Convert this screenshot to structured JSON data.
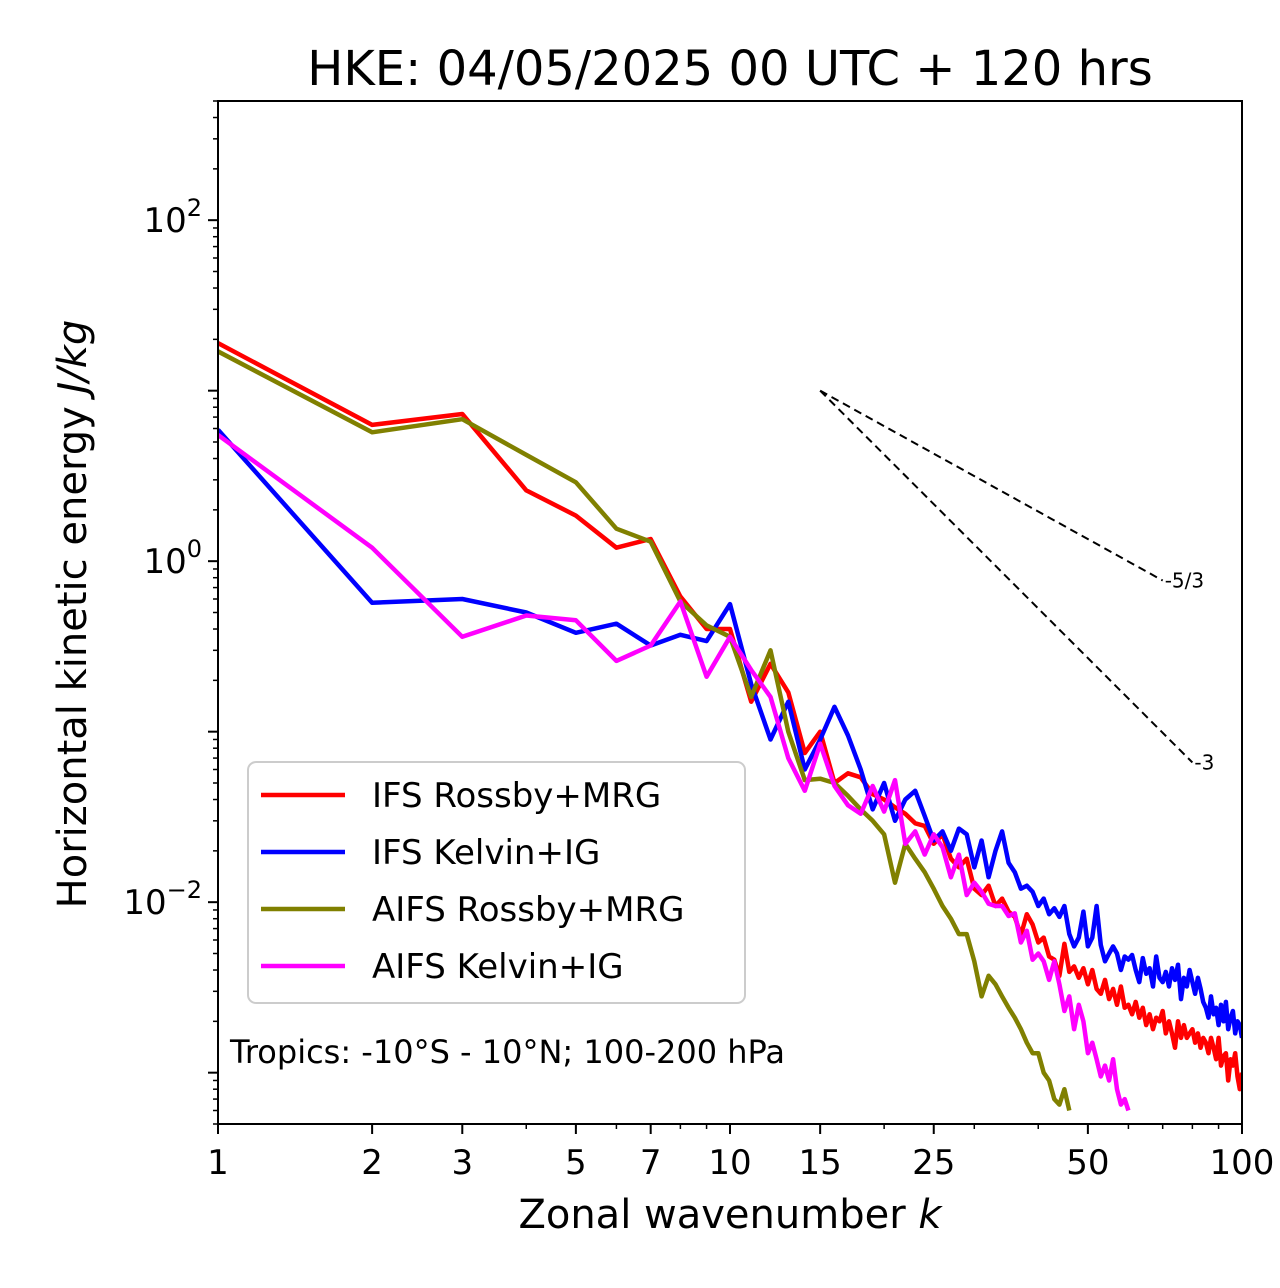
{
  "chart_data": {
    "type": "line",
    "title": "HKE: 04/05/2025 00 UTC + 120 hrs",
    "xlabel": "Zonal wavenumber",
    "xlabel_italic": "k",
    "ylabel": "Horizontal kinetic energy",
    "ylabel_italic": "J/kg",
    "xscale": "log",
    "yscale": "log",
    "xlim": [
      1,
      100
    ],
    "ylim": [
      0.0005,
      500
    ],
    "x_ticks": [
      1,
      2,
      3,
      5,
      7,
      10,
      15,
      25,
      50,
      100
    ],
    "x_tick_labels": [
      "1",
      "2",
      "3",
      "5",
      "7",
      "10",
      "15",
      "25",
      "50",
      "100"
    ],
    "y_ticks": [
      0.01,
      1,
      100
    ],
    "y_tick_bases": [
      "10",
      "10",
      "10"
    ],
    "y_tick_exps": [
      "−2",
      "0",
      "2"
    ],
    "grid": false,
    "legend_position": "lower-left",
    "annotation": "Tropics: -10°S - 10°N; 100-200 hPa",
    "reference_slopes": [
      {
        "label": "-5/3",
        "x": [
          15,
          70
        ],
        "y": [
          10,
          0.77
        ]
      },
      {
        "label": "-3",
        "x": [
          15,
          80
        ],
        "y": [
          10,
          0.066
        ]
      }
    ],
    "series": [
      {
        "name": "IFS Rossby+MRG",
        "color": "#ff0000",
        "x": [
          1,
          2,
          3,
          4,
          5,
          6,
          7,
          8,
          9,
          10,
          11,
          12,
          13,
          14,
          15,
          16,
          17,
          18,
          19,
          20,
          21,
          22,
          23,
          24,
          25,
          26,
          27,
          28,
          29,
          30,
          31,
          32,
          33,
          34,
          35,
          36,
          37,
          38,
          39,
          40,
          41,
          42,
          43,
          44,
          45,
          46,
          47,
          48,
          49,
          50,
          51,
          52,
          53,
          54,
          55,
          56,
          57,
          58,
          59,
          60,
          61,
          62,
          63,
          64,
          65,
          66,
          67,
          68,
          69,
          70,
          71,
          72,
          73,
          74,
          75,
          76,
          77,
          78,
          79,
          80,
          81,
          82,
          83,
          84,
          85,
          86,
          87,
          88,
          89,
          90,
          91,
          92,
          93,
          94,
          95,
          96,
          97,
          98,
          99,
          100
        ],
        "y": [
          19,
          6.3,
          7.3,
          2.6,
          1.85,
          1.2,
          1.35,
          0.62,
          0.4,
          0.4,
          0.15,
          0.25,
          0.17,
          0.075,
          0.1,
          0.05,
          0.057,
          0.054,
          0.043,
          0.04,
          0.036,
          0.033,
          0.029,
          0.028,
          0.022,
          0.025,
          0.018,
          0.016,
          0.018,
          0.012,
          0.011,
          0.0125,
          0.0095,
          0.0105,
          0.0088,
          0.0082,
          0.0064,
          0.0085,
          0.0074,
          0.0058,
          0.0062,
          0.0048,
          0.0046,
          0.0037,
          0.0057,
          0.0039,
          0.0042,
          0.0036,
          0.0041,
          0.0033,
          0.004,
          0.0031,
          0.0029,
          0.0035,
          0.0027,
          0.0031,
          0.0025,
          0.0032,
          0.0024,
          0.0025,
          0.0022,
          0.0026,
          0.0021,
          0.0024,
          0.0019,
          0.0022,
          0.0018,
          0.0021,
          0.002,
          0.0023,
          0.0017,
          0.002,
          0.0017,
          0.0014,
          0.002,
          0.0016,
          0.0019,
          0.0016,
          0.0017,
          0.0018,
          0.0015,
          0.0017,
          0.0014,
          0.0016,
          0.0015,
          0.0013,
          0.0016,
          0.0014,
          0.0012,
          0.0016,
          0.0011,
          0.00125,
          0.0013,
          0.0009,
          0.0012,
          0.0011,
          0.0013,
          0.00095,
          0.0008,
          0.001
        ]
      },
      {
        "name": "IFS Kelvin+IG",
        "color": "#0000ff",
        "x": [
          1,
          2,
          3,
          4,
          5,
          6,
          7,
          8,
          9,
          10,
          11,
          12,
          13,
          14,
          15,
          16,
          17,
          18,
          19,
          20,
          21,
          22,
          23,
          24,
          25,
          26,
          27,
          28,
          29,
          30,
          31,
          32,
          33,
          34,
          35,
          36,
          37,
          38,
          39,
          40,
          41,
          42,
          43,
          44,
          45,
          46,
          47,
          48,
          49,
          50,
          51,
          52,
          53,
          54,
          55,
          56,
          57,
          58,
          59,
          60,
          61,
          62,
          63,
          64,
          65,
          66,
          67,
          68,
          69,
          70,
          71,
          72,
          73,
          74,
          75,
          76,
          77,
          78,
          79,
          80,
          81,
          82,
          83,
          84,
          85,
          86,
          87,
          88,
          89,
          90,
          91,
          92,
          93,
          94,
          95,
          96,
          97,
          98,
          99,
          100
        ],
        "y": [
          5.9,
          0.57,
          0.6,
          0.5,
          0.38,
          0.43,
          0.32,
          0.37,
          0.34,
          0.56,
          0.19,
          0.09,
          0.15,
          0.06,
          0.09,
          0.14,
          0.095,
          0.06,
          0.035,
          0.05,
          0.03,
          0.04,
          0.045,
          0.032,
          0.023,
          0.026,
          0.02,
          0.027,
          0.025,
          0.016,
          0.023,
          0.014,
          0.02,
          0.026,
          0.017,
          0.015,
          0.012,
          0.0125,
          0.0115,
          0.0095,
          0.0105,
          0.0085,
          0.0092,
          0.0082,
          0.0095,
          0.0065,
          0.0055,
          0.0062,
          0.0088,
          0.0055,
          0.0062,
          0.0095,
          0.0056,
          0.0045,
          0.005,
          0.0055,
          0.005,
          0.004,
          0.0048,
          0.0046,
          0.0049,
          0.004,
          0.0034,
          0.0047,
          0.0038,
          0.0041,
          0.0032,
          0.0048,
          0.0036,
          0.0034,
          0.0039,
          0.0032,
          0.0041,
          0.0035,
          0.0043,
          0.0027,
          0.0036,
          0.0032,
          0.004,
          0.0034,
          0.0029,
          0.0036,
          0.0031,
          0.0026,
          0.0024,
          0.0021,
          0.0028,
          0.0022,
          0.0024,
          0.0019,
          0.0025,
          0.002,
          0.0026,
          0.0018,
          0.0021,
          0.0023,
          0.0017,
          0.002,
          0.0019,
          0.0016
        ]
      },
      {
        "name": "AIFS Rossby+MRG",
        "color": "#808000",
        "x": [
          1,
          2,
          3,
          4,
          5,
          6,
          7,
          8,
          9,
          10,
          11,
          12,
          13,
          14,
          15,
          16,
          17,
          18,
          19,
          20,
          21,
          22,
          23,
          24,
          25,
          26,
          27,
          28,
          29,
          30,
          31,
          32,
          33,
          34,
          35,
          36,
          37,
          38,
          39,
          40,
          41,
          42,
          43,
          44,
          45,
          46
        ],
        "y": [
          17,
          5.7,
          6.8,
          4.2,
          2.9,
          1.55,
          1.3,
          0.58,
          0.42,
          0.36,
          0.16,
          0.3,
          0.1,
          0.052,
          0.053,
          0.05,
          0.042,
          0.035,
          0.03,
          0.025,
          0.013,
          0.022,
          0.018,
          0.015,
          0.012,
          0.0095,
          0.008,
          0.0065,
          0.0065,
          0.0045,
          0.0028,
          0.0037,
          0.0033,
          0.0028,
          0.0024,
          0.0021,
          0.0018,
          0.0015,
          0.0013,
          0.0013,
          0.001,
          0.0009,
          0.0007,
          0.00065,
          0.0008,
          0.0006
        ]
      },
      {
        "name": "AIFS Kelvin+IG",
        "color": "#ff00ff",
        "x": [
          1,
          2,
          3,
          4,
          5,
          6,
          7,
          8,
          9,
          10,
          11,
          12,
          13,
          14,
          15,
          16,
          17,
          18,
          19,
          20,
          21,
          22,
          23,
          24,
          25,
          26,
          27,
          28,
          29,
          30,
          31,
          32,
          33,
          34,
          35,
          36,
          37,
          38,
          39,
          40,
          41,
          42,
          43,
          44,
          45,
          46,
          47,
          48,
          49,
          50,
          51,
          52,
          53,
          54,
          55,
          56,
          57,
          58,
          59,
          60
        ],
        "y": [
          5.5,
          1.2,
          0.36,
          0.48,
          0.45,
          0.26,
          0.32,
          0.58,
          0.21,
          0.36,
          0.23,
          0.16,
          0.07,
          0.045,
          0.085,
          0.048,
          0.037,
          0.033,
          0.048,
          0.034,
          0.052,
          0.022,
          0.026,
          0.019,
          0.025,
          0.021,
          0.014,
          0.019,
          0.011,
          0.013,
          0.0115,
          0.0098,
          0.0095,
          0.0095,
          0.0083,
          0.0086,
          0.0058,
          0.0068,
          0.0046,
          0.005,
          0.0045,
          0.0035,
          0.0045,
          0.0033,
          0.0023,
          0.0028,
          0.0018,
          0.0025,
          0.002,
          0.0013,
          0.0015,
          0.0012,
          0.00095,
          0.0011,
          0.0009,
          0.0012,
          0.0008,
          0.00065,
          0.0007,
          0.0006
        ]
      }
    ]
  }
}
